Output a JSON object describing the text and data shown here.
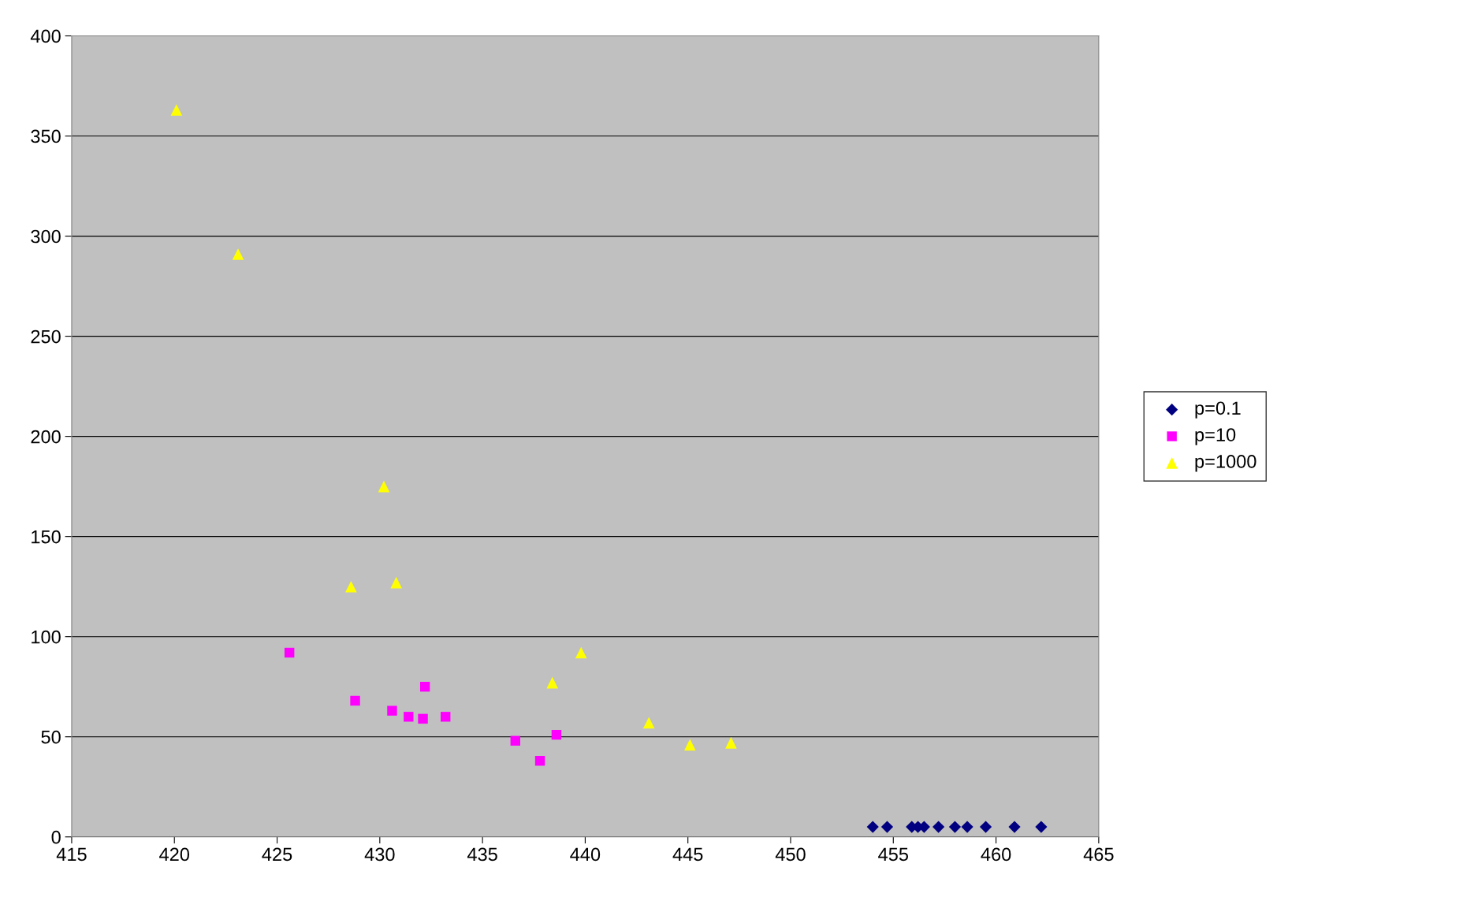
{
  "chart_data": {
    "type": "scatter",
    "xlim": [
      415,
      465
    ],
    "xticks": [
      415,
      420,
      425,
      430,
      435,
      440,
      445,
      450,
      455,
      460,
      465
    ],
    "ylim": [
      0,
      400
    ],
    "yticks": [
      0,
      50,
      100,
      150,
      200,
      250,
      300,
      350,
      400
    ],
    "grid": "y",
    "legend": "right",
    "series": [
      {
        "name": "p=0.1",
        "color": "#000080",
        "marker": "diamond",
        "x": [
          454.0,
          454.7,
          455.9,
          456.2,
          456.5,
          457.2,
          458.0,
          458.6,
          459.5,
          460.9,
          462.2
        ],
        "values": [
          5,
          5,
          5,
          5,
          5,
          5,
          5,
          5,
          5,
          5,
          5
        ]
      },
      {
        "name": "p=10",
        "color": "#ff00ff",
        "marker": "square",
        "x": [
          425.6,
          428.8,
          430.6,
          431.4,
          432.1,
          432.2,
          433.2,
          436.6,
          437.8,
          438.6
        ],
        "values": [
          92,
          68,
          63,
          60,
          59,
          75,
          60,
          48,
          38,
          51
        ]
      },
      {
        "name": "p=1000",
        "color": "#ffff00",
        "marker": "triangle",
        "x": [
          420.1,
          423.1,
          430.2,
          428.6,
          430.8,
          439.8,
          438.4,
          443.1,
          445.1,
          447.1
        ],
        "values": [
          363,
          291,
          175,
          125,
          127,
          92,
          77,
          57,
          46,
          47
        ]
      }
    ]
  }
}
